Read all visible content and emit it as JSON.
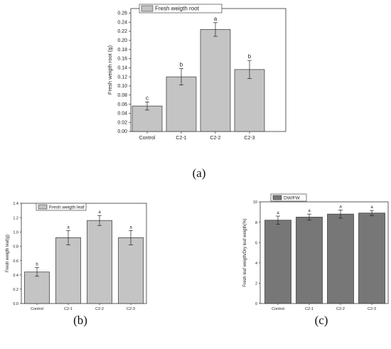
{
  "panel_labels": [
    "(a)",
    "(b)",
    "(c)"
  ],
  "chart_data": [
    {
      "type": "bar",
      "categories": [
        "Control",
        "C2-1",
        "C2-2",
        "C2-3"
      ],
      "series": [
        {
          "name": "Fresh weigth root",
          "values": [
            0.056,
            0.12,
            0.224,
            0.136
          ],
          "errors": [
            0.009,
            0.018,
            0.015,
            0.02
          ]
        }
      ],
      "significance": [
        "c",
        "b",
        "a",
        "b"
      ],
      "ylabel": "Fresh weigth root (g)",
      "ylim": [
        0,
        0.27
      ],
      "yticks": [
        "0.00",
        "0.02",
        "0.04",
        "0.06",
        "0.08",
        "0.10",
        "0.12",
        "0.14",
        "0.16",
        "0.18",
        "0.20",
        "0.22",
        "0.24",
        "0.26"
      ],
      "legend_position": "top",
      "bar_color": "#c4c4c4",
      "grid": false
    },
    {
      "type": "bar",
      "categories": [
        "Control",
        "C2-1",
        "C2-2",
        "C2-3"
      ],
      "series": [
        {
          "name": "Fresh weigth leaf",
          "values": [
            0.44,
            0.92,
            1.16,
            0.92
          ],
          "errors": [
            0.06,
            0.1,
            0.07,
            0.1
          ]
        }
      ],
      "significance": [
        "b",
        "a",
        "a",
        "a"
      ],
      "ylabel": "Fresh weigth leaf(g)",
      "ylim": [
        0,
        1.4
      ],
      "yticks": [
        "0.0",
        "0.2",
        "0.4",
        "0.6",
        "0.8",
        "1.0",
        "1.2",
        "1.4"
      ],
      "legend_position": "top-left",
      "bar_color": "#c4c4c4",
      "grid": false
    },
    {
      "type": "bar",
      "categories": [
        "Control",
        "C2-1",
        "C2-2",
        "C2-3"
      ],
      "series": [
        {
          "name": "DW/FW",
          "values": [
            8.2,
            8.5,
            8.8,
            8.9
          ],
          "errors": [
            0.4,
            0.3,
            0.4,
            0.25
          ]
        }
      ],
      "significance": [
        "a",
        "a",
        "a",
        "a"
      ],
      "ylabel": "Fresh leaf weigth/Dry leaf weigth(%)",
      "ylim": [
        0,
        10
      ],
      "yticks": [
        "0",
        "2",
        "4",
        "6",
        "8",
        "10"
      ],
      "legend_position": "top-left",
      "bar_color": "#777777",
      "grid": false
    }
  ]
}
